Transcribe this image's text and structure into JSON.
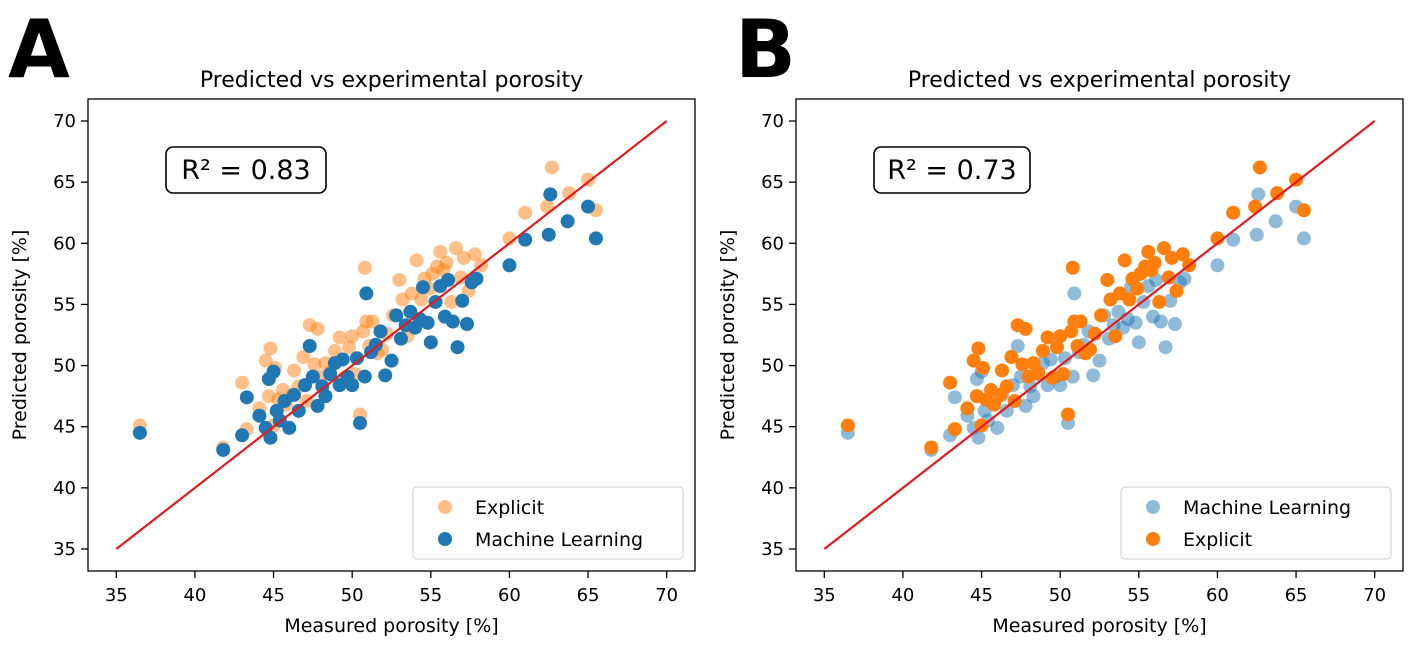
{
  "panels": [
    {
      "letter": "A"
    },
    {
      "letter": "B"
    }
  ],
  "colors": {
    "explicit": "#ff7f0e",
    "ml": "#1f77b4",
    "identity_line": "#e41a1c"
  },
  "chart_data": [
    {
      "type": "scatter",
      "title": "Predicted vs experimental porosity",
      "xlabel": "Measured porosity [%]",
      "ylabel": "Predicted porosity [%]",
      "xlim": [
        33.2,
        71.8
      ],
      "ylim": [
        33.2,
        71.8
      ],
      "xticks": [
        35,
        40,
        45,
        50,
        55,
        60,
        65,
        70
      ],
      "yticks": [
        35,
        40,
        45,
        50,
        55,
        60,
        65,
        70
      ],
      "annotation": "R² = 0.83",
      "legend_position": "lower right",
      "legend": [
        "Explicit",
        "Machine Learning"
      ],
      "draw_order": [
        "explicit",
        "ml"
      ],
      "identity_line": {
        "x": [
          35,
          70
        ],
        "y": [
          35,
          70
        ]
      },
      "series": [
        {
          "key": "explicit",
          "name": "Explicit",
          "color": "#ff7f0e",
          "opacity": 0.5,
          "x": [
            36.5,
            41.8,
            43.0,
            43.3,
            44.1,
            44.5,
            44.7,
            44.8,
            45.0,
            45.1,
            45.3,
            45.6,
            45.8,
            46.2,
            46.3,
            46.6,
            46.9,
            47.1,
            47.3,
            47.6,
            47.8,
            48.0,
            48.3,
            48.6,
            48.9,
            49.2,
            49.5,
            49.8,
            50.0,
            50.2,
            50.5,
            50.7,
            50.8,
            50.9,
            51.1,
            51.3,
            51.6,
            51.9,
            52.2,
            52.6,
            53.0,
            53.2,
            53.5,
            53.8,
            54.1,
            54.4,
            54.6,
            54.9,
            55.1,
            55.4,
            55.6,
            55.8,
            56.0,
            56.3,
            56.6,
            56.9,
            57.1,
            57.4,
            57.8,
            58.2,
            60.0,
            61.0,
            62.4,
            62.7,
            63.8,
            65.0,
            65.5
          ],
          "y": [
            45.1,
            43.3,
            48.6,
            44.8,
            46.5,
            50.4,
            47.5,
            51.4,
            45.1,
            49.8,
            47.2,
            48.0,
            46.8,
            47.6,
            49.6,
            48.3,
            50.7,
            47.1,
            53.3,
            50.1,
            53.0,
            49.1,
            50.2,
            49.4,
            51.2,
            52.3,
            49.0,
            51.5,
            52.4,
            49.3,
            46.0,
            52.8,
            58.0,
            53.6,
            51.6,
            53.6,
            51.0,
            51.3,
            52.6,
            54.1,
            57.0,
            55.4,
            52.4,
            55.9,
            58.6,
            55.4,
            57.1,
            56.3,
            57.5,
            58.1,
            59.3,
            57.8,
            58.4,
            55.2,
            59.6,
            57.2,
            58.8,
            56.1,
            59.1,
            58.2,
            60.4,
            62.5,
            63.0,
            66.2,
            64.1,
            65.2,
            62.7
          ]
        },
        {
          "key": "ml",
          "name": "Machine Learning",
          "color": "#1f77b4",
          "opacity": 1,
          "x": [
            36.5,
            41.8,
            43.0,
            43.3,
            44.1,
            44.5,
            44.7,
            44.8,
            45.0,
            45.2,
            45.4,
            45.7,
            46.0,
            46.3,
            46.6,
            47.0,
            47.3,
            47.5,
            47.8,
            48.1,
            48.3,
            48.6,
            48.9,
            49.2,
            49.4,
            49.7,
            50.0,
            50.3,
            50.5,
            50.8,
            50.9,
            51.2,
            51.5,
            51.8,
            52.1,
            52.5,
            52.8,
            53.1,
            53.4,
            53.7,
            54.0,
            54.3,
            54.5,
            54.8,
            55.0,
            55.3,
            55.6,
            55.9,
            56.1,
            56.4,
            56.7,
            57.0,
            57.3,
            57.6,
            57.9,
            60.0,
            61.0,
            62.5,
            62.6,
            63.7,
            65.0,
            65.5
          ],
          "y": [
            44.5,
            43.1,
            44.3,
            47.4,
            45.9,
            44.9,
            48.9,
            44.1,
            49.5,
            46.3,
            45.5,
            47.1,
            44.9,
            47.6,
            46.3,
            48.4,
            51.6,
            49.1,
            46.7,
            48.3,
            47.5,
            49.3,
            50.2,
            48.4,
            50.5,
            49.1,
            48.4,
            50.6,
            45.3,
            49.1,
            55.9,
            51.1,
            51.7,
            52.8,
            49.2,
            50.4,
            54.1,
            52.2,
            53.3,
            54.4,
            53.1,
            53.8,
            56.4,
            53.5,
            51.9,
            55.2,
            56.5,
            54.0,
            57.0,
            53.6,
            51.5,
            55.3,
            53.4,
            56.8,
            57.1,
            58.2,
            60.3,
            60.7,
            64.0,
            61.8,
            63.0,
            60.4
          ]
        }
      ]
    },
    {
      "type": "scatter",
      "title": "Predicted vs experimental porosity",
      "xlabel": "Measured porosity [%]",
      "ylabel": "Predicted porosity [%]",
      "xlim": [
        33.2,
        71.8
      ],
      "ylim": [
        33.2,
        71.8
      ],
      "xticks": [
        35,
        40,
        45,
        50,
        55,
        60,
        65,
        70
      ],
      "yticks": [
        35,
        40,
        45,
        50,
        55,
        60,
        65,
        70
      ],
      "annotation": "R² = 0.73",
      "legend_position": "lower right",
      "legend": [
        "Machine Learning",
        "Explicit"
      ],
      "draw_order": [
        "ml",
        "explicit"
      ],
      "identity_line": {
        "x": [
          35,
          70
        ],
        "y": [
          35,
          70
        ]
      },
      "series": [
        {
          "key": "explicit",
          "name": "Explicit",
          "color": "#ff7f0e",
          "opacity": 1,
          "x": [
            36.5,
            41.8,
            43.0,
            43.3,
            44.1,
            44.5,
            44.7,
            44.8,
            45.0,
            45.1,
            45.3,
            45.6,
            45.8,
            46.2,
            46.3,
            46.6,
            46.9,
            47.1,
            47.3,
            47.6,
            47.8,
            48.0,
            48.3,
            48.6,
            48.9,
            49.2,
            49.5,
            49.8,
            50.0,
            50.2,
            50.5,
            50.7,
            50.8,
            50.9,
            51.1,
            51.3,
            51.6,
            51.9,
            52.2,
            52.6,
            53.0,
            53.2,
            53.5,
            53.8,
            54.1,
            54.4,
            54.6,
            54.9,
            55.1,
            55.4,
            55.6,
            55.8,
            56.0,
            56.3,
            56.6,
            56.9,
            57.1,
            57.4,
            57.8,
            58.2,
            60.0,
            61.0,
            62.4,
            62.7,
            63.8,
            65.0,
            65.5
          ],
          "y": [
            45.1,
            43.3,
            48.6,
            44.8,
            46.5,
            50.4,
            47.5,
            51.4,
            45.1,
            49.8,
            47.2,
            48.0,
            46.8,
            47.6,
            49.6,
            48.3,
            50.7,
            47.1,
            53.3,
            50.1,
            53.0,
            49.1,
            50.2,
            49.4,
            51.2,
            52.3,
            49.0,
            51.5,
            52.4,
            49.3,
            46.0,
            52.8,
            58.0,
            53.6,
            51.6,
            53.6,
            51.0,
            51.3,
            52.6,
            54.1,
            57.0,
            55.4,
            52.4,
            55.9,
            58.6,
            55.4,
            57.1,
            56.3,
            57.5,
            58.1,
            59.3,
            57.8,
            58.4,
            55.2,
            59.6,
            57.2,
            58.8,
            56.1,
            59.1,
            58.2,
            60.4,
            62.5,
            63.0,
            66.2,
            64.1,
            65.2,
            62.7
          ]
        },
        {
          "key": "ml",
          "name": "Machine Learning",
          "color": "#1f77b4",
          "opacity": 0.5,
          "x": [
            36.5,
            41.8,
            43.0,
            43.3,
            44.1,
            44.5,
            44.7,
            44.8,
            45.0,
            45.2,
            45.4,
            45.7,
            46.0,
            46.3,
            46.6,
            47.0,
            47.3,
            47.5,
            47.8,
            48.1,
            48.3,
            48.6,
            48.9,
            49.2,
            49.4,
            49.7,
            50.0,
            50.3,
            50.5,
            50.8,
            50.9,
            51.2,
            51.5,
            51.8,
            52.1,
            52.5,
            52.8,
            53.1,
            53.4,
            53.7,
            54.0,
            54.3,
            54.5,
            54.8,
            55.0,
            55.3,
            55.6,
            55.9,
            56.1,
            56.4,
            56.7,
            57.0,
            57.3,
            57.6,
            57.9,
            60.0,
            61.0,
            62.5,
            62.6,
            63.7,
            65.0,
            65.5
          ],
          "y": [
            44.5,
            43.1,
            44.3,
            47.4,
            45.9,
            44.9,
            48.9,
            44.1,
            49.5,
            46.3,
            45.5,
            47.1,
            44.9,
            47.6,
            46.3,
            48.4,
            51.6,
            49.1,
            46.7,
            48.3,
            47.5,
            49.3,
            50.2,
            48.4,
            50.5,
            49.1,
            48.4,
            50.6,
            45.3,
            49.1,
            55.9,
            51.1,
            51.7,
            52.8,
            49.2,
            50.4,
            54.1,
            52.2,
            53.3,
            54.4,
            53.1,
            53.8,
            56.4,
            53.5,
            51.9,
            55.2,
            56.5,
            54.0,
            57.0,
            53.6,
            51.5,
            55.3,
            53.4,
            56.8,
            57.1,
            58.2,
            60.3,
            60.7,
            64.0,
            61.8,
            63.0,
            60.4
          ]
        }
      ]
    }
  ]
}
